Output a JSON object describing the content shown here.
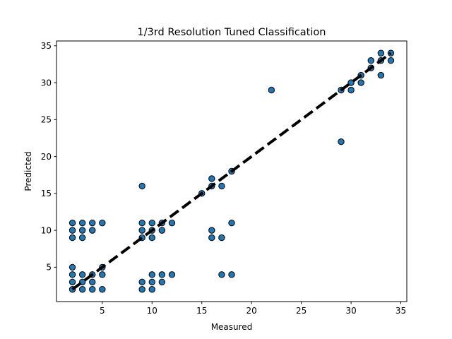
{
  "chart_data": {
    "type": "scatter",
    "title": "1/3rd Resolution Tuned Classification",
    "xlabel": "Measured",
    "ylabel": "Predicted",
    "xlim": [
      0.4,
      35.6
    ],
    "ylim": [
      0.35,
      35.65
    ],
    "xticks": [
      5,
      10,
      15,
      20,
      25,
      30,
      35
    ],
    "yticks": [
      5,
      10,
      15,
      20,
      25,
      30,
      35
    ],
    "grid": false,
    "legend": "none",
    "marker_color": "#1f77b4",
    "marker_edge_color": "#000000",
    "reference_line": {
      "from": [
        2,
        2
      ],
      "to": [
        34,
        34
      ],
      "style": "dashed",
      "color": "#000000"
    },
    "points": [
      [
        2,
        2
      ],
      [
        2,
        3
      ],
      [
        2,
        4
      ],
      [
        2,
        5
      ],
      [
        2,
        9
      ],
      [
        2,
        10
      ],
      [
        2,
        11
      ],
      [
        3,
        2
      ],
      [
        3,
        3
      ],
      [
        3,
        4
      ],
      [
        3,
        9
      ],
      [
        3,
        10
      ],
      [
        3,
        11
      ],
      [
        4,
        2
      ],
      [
        4,
        3
      ],
      [
        4,
        4
      ],
      [
        4,
        10
      ],
      [
        4,
        11
      ],
      [
        5,
        2
      ],
      [
        5,
        4
      ],
      [
        5,
        5
      ],
      [
        5,
        11
      ],
      [
        9,
        2
      ],
      [
        9,
        3
      ],
      [
        9,
        9
      ],
      [
        9,
        10
      ],
      [
        9,
        11
      ],
      [
        9,
        16
      ],
      [
        10,
        2
      ],
      [
        10,
        3
      ],
      [
        10,
        4
      ],
      [
        10,
        9
      ],
      [
        10,
        10
      ],
      [
        10,
        11
      ],
      [
        11,
        3
      ],
      [
        11,
        4
      ],
      [
        11,
        10
      ],
      [
        11,
        11
      ],
      [
        12,
        4
      ],
      [
        12,
        11
      ],
      [
        15,
        15
      ],
      [
        16,
        9
      ],
      [
        16,
        10
      ],
      [
        16,
        16
      ],
      [
        16,
        17
      ],
      [
        17,
        4
      ],
      [
        17,
        9
      ],
      [
        17,
        16
      ],
      [
        18,
        4
      ],
      [
        18,
        11
      ],
      [
        18,
        18
      ],
      [
        22,
        29
      ],
      [
        29,
        22
      ],
      [
        29,
        29
      ],
      [
        30,
        29
      ],
      [
        30,
        30
      ],
      [
        31,
        30
      ],
      [
        31,
        31
      ],
      [
        32,
        32
      ],
      [
        32,
        33
      ],
      [
        33,
        31
      ],
      [
        33,
        33
      ],
      [
        33,
        34
      ],
      [
        34,
        33
      ],
      [
        34,
        34
      ]
    ]
  }
}
